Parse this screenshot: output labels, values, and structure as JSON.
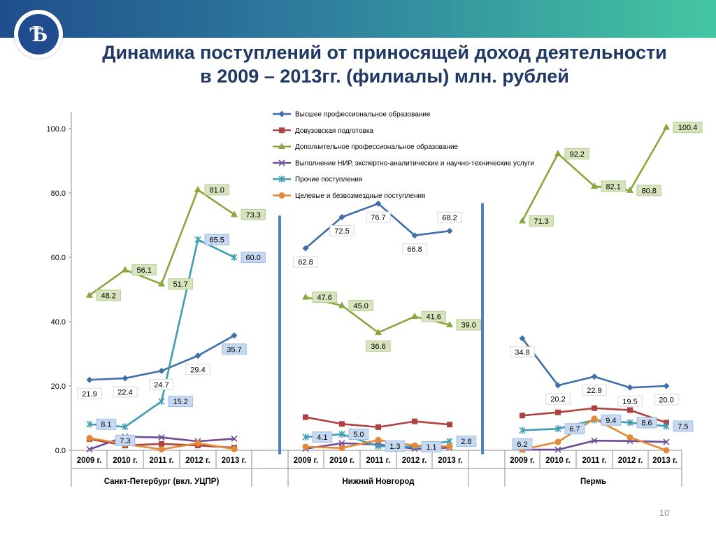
{
  "slide": {
    "title_line1": "Динамика поступлений от приносящей доход деятельности",
    "title_line2": "в 2009 – 2013гг. (филиалы) млн. рублей",
    "logo_letter": "Ѣ",
    "page_number": "10"
  },
  "chart_data": {
    "type": "line",
    "title": "",
    "ylabel": "",
    "ylim": [
      0,
      100
    ],
    "y_ticks": [
      "0.0",
      "20.0",
      "40.0",
      "60.0",
      "80.0",
      "100.0"
    ],
    "legend_position": "top",
    "groups": [
      {
        "name": "Санкт-Петербург (вкл. УЦПР)",
        "categories": [
          "2009 г.",
          "2010 г.",
          "2011 г.",
          "2012 г.",
          "2013 г."
        ]
      },
      {
        "name": "Нижний Новгород",
        "categories": [
          "2009 г.",
          "2010 г.",
          "2011 г.",
          "2012 г.",
          "2013 г."
        ]
      },
      {
        "name": "Пермь",
        "categories": [
          "2009 г.",
          "2010 г.",
          "2011 г.",
          "2012 г.",
          "2013 г."
        ]
      }
    ],
    "series": [
      {
        "name": "Высшее профессиональное образование",
        "color": "#3f6fa8",
        "marker": "diamond",
        "values": [
          [
            21.9,
            22.4,
            24.7,
            29.4,
            35.7
          ],
          [
            62.8,
            72.5,
            76.7,
            66.8,
            68.2
          ],
          [
            34.8,
            20.2,
            22.9,
            19.5,
            20.0
          ]
        ]
      },
      {
        "name": "Довузовская подготовка",
        "color": "#b0413e",
        "marker": "square",
        "values": [
          [
            3.5,
            1.5,
            2.0,
            1.5,
            0.8
          ],
          [
            10.3,
            8.2,
            7.2,
            9.0,
            8.0
          ],
          [
            10.8,
            11.8,
            13.1,
            12.5,
            8.6
          ]
        ]
      },
      {
        "name": "Дополнительное профессиональное образование",
        "color": "#8aa63d",
        "marker": "triangle",
        "values": [
          [
            48.2,
            56.1,
            51.7,
            81.0,
            73.3
          ],
          [
            47.6,
            45.0,
            36.6,
            41.6,
            39.0
          ],
          [
            71.3,
            92.2,
            82.1,
            80.8,
            100.4
          ]
        ]
      },
      {
        "name": "Выполнение НИР, экспертно-аналитические и научно-технические услуги",
        "color": "#6f4b96",
        "marker": "x",
        "values": [
          [
            0.3,
            4.2,
            4.0,
            2.8,
            3.6
          ],
          [
            0.5,
            2.2,
            1.8,
            0.5,
            0.8
          ],
          [
            0.2,
            0.2,
            3.0,
            2.9,
            2.6
          ]
        ]
      },
      {
        "name": "Прочие поступления",
        "color": "#3e9db5",
        "marker": "star",
        "values": [
          [
            8.1,
            7.3,
            15.2,
            65.5,
            60.0
          ],
          [
            4.1,
            5.0,
            1.3,
            1.1,
            2.8
          ],
          [
            6.2,
            6.7,
            9.4,
            8.6,
            7.5
          ]
        ]
      },
      {
        "name": "Целевые и безвозмездные поступления",
        "color": "#e28a37",
        "marker": "circle",
        "values": [
          [
            3.8,
            1.9,
            0.3,
            2.2,
            0.4
          ],
          [
            1.1,
            0.7,
            3.2,
            1.5,
            1.2
          ],
          [
            0.2,
            2.6,
            9.8,
            4.0,
            0.0
          ]
        ]
      }
    ],
    "data_labels": [
      {
        "text": "21.9",
        "series": 0,
        "group": 0,
        "index": 0,
        "style": "plain",
        "pos": "below"
      },
      {
        "text": "22.4",
        "series": 0,
        "group": 0,
        "index": 1,
        "style": "plain",
        "pos": "below"
      },
      {
        "text": "24.7",
        "series": 0,
        "group": 0,
        "index": 2,
        "style": "plain",
        "pos": "below"
      },
      {
        "text": "29.4",
        "series": 0,
        "group": 0,
        "index": 3,
        "style": "plain",
        "pos": "below"
      },
      {
        "text": "35.7",
        "series": 0,
        "group": 0,
        "index": 4,
        "style": "blue",
        "pos": "below"
      },
      {
        "text": "62.8",
        "series": 0,
        "group": 1,
        "index": 0,
        "style": "plain",
        "pos": "below"
      },
      {
        "text": "72.5",
        "series": 0,
        "group": 1,
        "index": 1,
        "style": "plain",
        "pos": "below"
      },
      {
        "text": "76.7",
        "series": 0,
        "group": 1,
        "index": 2,
        "style": "plain",
        "pos": "below"
      },
      {
        "text": "66.8",
        "series": 0,
        "group": 1,
        "index": 3,
        "style": "plain",
        "pos": "below"
      },
      {
        "text": "68.2",
        "series": 0,
        "group": 1,
        "index": 4,
        "style": "plain",
        "pos": "above"
      },
      {
        "text": "34.8",
        "series": 0,
        "group": 2,
        "index": 0,
        "style": "plain",
        "pos": "below"
      },
      {
        "text": "20.2",
        "series": 0,
        "group": 2,
        "index": 1,
        "style": "plain",
        "pos": "below"
      },
      {
        "text": "22.9",
        "series": 0,
        "group": 2,
        "index": 2,
        "style": "plain",
        "pos": "below"
      },
      {
        "text": "19.5",
        "series": 0,
        "group": 2,
        "index": 3,
        "style": "plain",
        "pos": "below"
      },
      {
        "text": "20.0",
        "series": 0,
        "group": 2,
        "index": 4,
        "style": "plain",
        "pos": "below"
      },
      {
        "text": "48.2",
        "series": 2,
        "group": 0,
        "index": 0,
        "style": "green",
        "pos": "right"
      },
      {
        "text": "56.1",
        "series": 2,
        "group": 0,
        "index": 1,
        "style": "green",
        "pos": "right"
      },
      {
        "text": "51.7",
        "series": 2,
        "group": 0,
        "index": 2,
        "style": "green",
        "pos": "right"
      },
      {
        "text": "81.0",
        "series": 2,
        "group": 0,
        "index": 3,
        "style": "green",
        "pos": "right"
      },
      {
        "text": "73.3",
        "series": 2,
        "group": 0,
        "index": 4,
        "style": "green",
        "pos": "right"
      },
      {
        "text": "47.6",
        "series": 2,
        "group": 1,
        "index": 0,
        "style": "green",
        "pos": "right"
      },
      {
        "text": "45.0",
        "series": 2,
        "group": 1,
        "index": 1,
        "style": "green",
        "pos": "right"
      },
      {
        "text": "36.6",
        "series": 2,
        "group": 1,
        "index": 2,
        "style": "green",
        "pos": "below"
      },
      {
        "text": "41.6",
        "series": 2,
        "group": 1,
        "index": 3,
        "style": "green",
        "pos": "right"
      },
      {
        "text": "39.0",
        "series": 2,
        "group": 1,
        "index": 4,
        "style": "green",
        "pos": "right"
      },
      {
        "text": "71.3",
        "series": 2,
        "group": 2,
        "index": 0,
        "style": "green",
        "pos": "right"
      },
      {
        "text": "92.2",
        "series": 2,
        "group": 2,
        "index": 1,
        "style": "green",
        "pos": "right"
      },
      {
        "text": "82.1",
        "series": 2,
        "group": 2,
        "index": 2,
        "style": "green",
        "pos": "right"
      },
      {
        "text": "80.8",
        "series": 2,
        "group": 2,
        "index": 3,
        "style": "green",
        "pos": "right"
      },
      {
        "text": "100.4",
        "series": 2,
        "group": 2,
        "index": 4,
        "style": "green",
        "pos": "right"
      },
      {
        "text": "8.1",
        "series": 4,
        "group": 0,
        "index": 0,
        "style": "blue",
        "pos": "right"
      },
      {
        "text": "7.3",
        "series": 4,
        "group": 0,
        "index": 1,
        "style": "blue",
        "pos": "below"
      },
      {
        "text": "15.2",
        "series": 4,
        "group": 0,
        "index": 2,
        "style": "blue",
        "pos": "right"
      },
      {
        "text": "65.5",
        "series": 4,
        "group": 0,
        "index": 3,
        "style": "blue",
        "pos": "right"
      },
      {
        "text": "60.0",
        "series": 4,
        "group": 0,
        "index": 4,
        "style": "blue",
        "pos": "right"
      },
      {
        "text": "4.1",
        "series": 4,
        "group": 1,
        "index": 0,
        "style": "blue",
        "pos": "right"
      },
      {
        "text": "5.0",
        "series": 4,
        "group": 1,
        "index": 1,
        "style": "blue",
        "pos": "right"
      },
      {
        "text": "1.3",
        "series": 4,
        "group": 1,
        "index": 2,
        "style": "blue",
        "pos": "right"
      },
      {
        "text": "1.1",
        "series": 4,
        "group": 1,
        "index": 3,
        "style": "blue",
        "pos": "right"
      },
      {
        "text": "2.8",
        "series": 4,
        "group": 1,
        "index": 4,
        "style": "blue",
        "pos": "right"
      },
      {
        "text": "6.2",
        "series": 4,
        "group": 2,
        "index": 0,
        "style": "blue",
        "pos": "below"
      },
      {
        "text": "6.7",
        "series": 4,
        "group": 2,
        "index": 1,
        "style": "blue",
        "pos": "right"
      },
      {
        "text": "9.4",
        "series": 4,
        "group": 2,
        "index": 2,
        "style": "blue",
        "pos": "right"
      },
      {
        "text": "8.6",
        "series": 4,
        "group": 2,
        "index": 3,
        "style": "blue",
        "pos": "right"
      },
      {
        "text": "7.5",
        "series": 4,
        "group": 2,
        "index": 4,
        "style": "blue",
        "pos": "right"
      }
    ],
    "label_styles": {
      "plain": {
        "fill": "#ffffff",
        "stroke": "#d9d9d9"
      },
      "green": {
        "fill": "#d7e4bd",
        "stroke": "#b8cc8c"
      },
      "blue": {
        "fill": "#c6d9f1",
        "stroke": "#9fbde6"
      }
    },
    "divider_color": "#4f81bd"
  }
}
